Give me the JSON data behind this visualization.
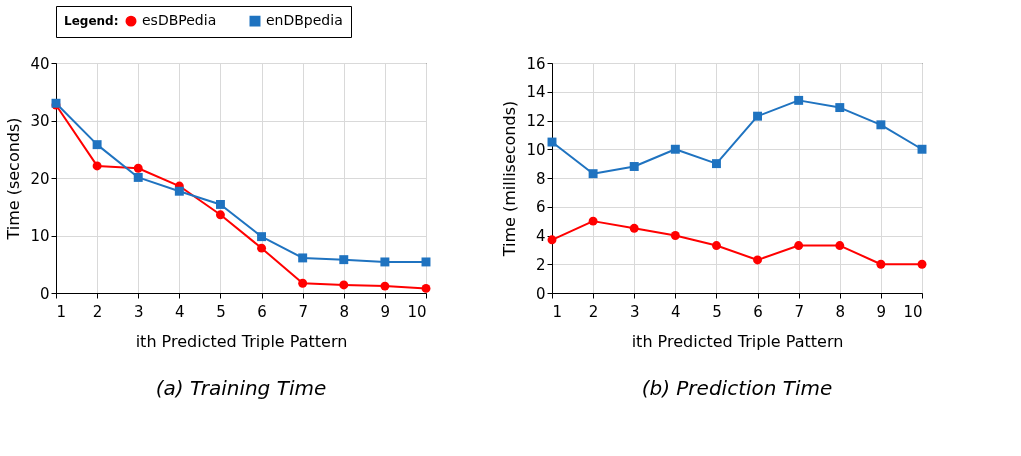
{
  "chart_data": [
    {
      "type": "line",
      "title": "(a) Training Time",
      "xlabel": "ith Predicted Triple Pattern",
      "ylabel": "Time (seconds)",
      "legend_title": "Legend:",
      "legend": "top",
      "grid": true,
      "line_style": "solid",
      "x": [
        1,
        2,
        3,
        4,
        5,
        6,
        7,
        8,
        9,
        10
      ],
      "xlim": [
        1,
        10
      ],
      "xticks": [
        1,
        2,
        3,
        4,
        5,
        6,
        7,
        8,
        9,
        10
      ],
      "ylim": [
        0,
        40
      ],
      "yticks": [
        0,
        10,
        20,
        30,
        40
      ],
      "series": [
        {
          "name": "esDBPedia",
          "color": "#ff0000",
          "marker": "circle",
          "values": [
            32.7,
            22.1,
            21.7,
            18.6,
            13.6,
            7.8,
            1.7,
            1.4,
            1.2,
            0.8
          ]
        },
        {
          "name": "enDBpedia",
          "color": "#1f73c0",
          "marker": "square",
          "values": [
            33.0,
            25.8,
            20.1,
            17.7,
            15.4,
            9.8,
            6.1,
            5.8,
            5.4,
            5.4
          ]
        }
      ]
    },
    {
      "type": "line",
      "title": "(b) Prediction Time",
      "xlabel": "ith Predicted Triple Pattern",
      "ylabel": "Time (milliseconds)",
      "legend": "top",
      "grid": true,
      "line_style": "solid",
      "x": [
        1,
        2,
        3,
        4,
        5,
        6,
        7,
        8,
        9,
        10
      ],
      "xlim": [
        1,
        10
      ],
      "xticks": [
        1,
        2,
        3,
        4,
        5,
        6,
        7,
        8,
        9,
        10
      ],
      "ylim": [
        0,
        16
      ],
      "yticks": [
        0,
        2,
        4,
        6,
        8,
        10,
        12,
        14,
        16
      ],
      "series": [
        {
          "name": "esDBPedia",
          "color": "#ff0000",
          "marker": "circle",
          "values": [
            3.7,
            5.0,
            4.5,
            4.0,
            3.3,
            2.3,
            3.3,
            3.3,
            2.0,
            2.0
          ]
        },
        {
          "name": "enDBpedia",
          "color": "#1f73c0",
          "marker": "square",
          "values": [
            10.5,
            8.3,
            8.8,
            10.0,
            9.0,
            12.3,
            13.4,
            12.9,
            11.7,
            10.0
          ]
        }
      ]
    }
  ]
}
